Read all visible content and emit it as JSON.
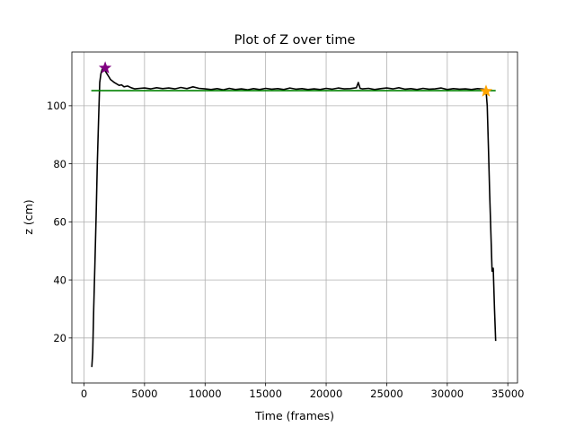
{
  "chart_data": {
    "type": "line",
    "title": "Plot of Z over time",
    "xlabel": "Time (frames)",
    "ylabel": "z (cm)",
    "xlim": [
      -1000,
      35800
    ],
    "ylim": [
      4.5,
      118.5
    ],
    "xticks": [
      0,
      5000,
      10000,
      15000,
      20000,
      25000,
      30000,
      35000
    ],
    "xtick_labels": [
      "0",
      "5000",
      "10000",
      "15000",
      "20000",
      "25000",
      "30000",
      "35000"
    ],
    "yticks": [
      20,
      40,
      60,
      80,
      100
    ],
    "ytick_labels": [
      "20",
      "40",
      "60",
      "80",
      "100"
    ],
    "grid": true,
    "legend": "none",
    "series": [
      {
        "color": "#000000",
        "x": [
          650,
          720,
          800,
          900,
          1000,
          1100,
          1200,
          1300,
          1400,
          1500,
          1600,
          1750,
          1900,
          2050,
          2200,
          2350,
          2500,
          2700,
          2900,
          3100,
          3300,
          3600,
          3900,
          4200,
          4600,
          5000,
          5500,
          6000,
          6500,
          7000,
          7500,
          8000,
          8500,
          9000,
          9500,
          10000,
          10500,
          11000,
          11500,
          12000,
          12500,
          13000,
          13500,
          14000,
          14500,
          15000,
          15500,
          16000,
          16500,
          17000,
          17500,
          18000,
          18500,
          19000,
          19500,
          20000,
          20500,
          21000,
          21500,
          22000,
          22500,
          22650,
          22800,
          23000,
          23500,
          24000,
          24500,
          25000,
          25500,
          26000,
          26500,
          27000,
          27500,
          28000,
          28500,
          29000,
          29500,
          30000,
          30500,
          31000,
          31500,
          32000,
          32500,
          33000,
          33100,
          33200,
          33300,
          33400,
          33500,
          33600,
          33700,
          33800,
          33900,
          34000
        ],
        "y": [
          10,
          15,
          30,
          45,
          62,
          80,
          95,
          108,
          111,
          112.5,
          113,
          112,
          111,
          110,
          109,
          108.5,
          108,
          107.5,
          107,
          107.2,
          106.5,
          106.8,
          106.2,
          105.8,
          106,
          106.1,
          105.8,
          106.2,
          105.9,
          106.1,
          105.8,
          106.3,
          105.9,
          106.5,
          106,
          105.8,
          105.6,
          105.9,
          105.5,
          106,
          105.6,
          105.8,
          105.5,
          105.9,
          105.6,
          106,
          105.7,
          105.9,
          105.6,
          106.1,
          105.7,
          105.9,
          105.6,
          105.8,
          105.6,
          106,
          105.7,
          106.1,
          105.8,
          105.9,
          106.2,
          108,
          106,
          105.8,
          106,
          105.6,
          105.9,
          106.1,
          105.8,
          106.2,
          105.7,
          105.9,
          105.6,
          106,
          105.7,
          105.8,
          106.1,
          105.6,
          105.9,
          105.7,
          105.8,
          105.6,
          105.9,
          105.7,
          105.5,
          105.2,
          100,
          85,
          70,
          57,
          43,
          44,
          30,
          19
        ]
      },
      {
        "color": "#008000",
        "x": [
          600,
          34000
        ],
        "y": [
          105.2,
          105.2
        ]
      }
    ],
    "markers": [
      {
        "shape": "star",
        "x": 1750,
        "y": 113,
        "color": "#800080"
      },
      {
        "shape": "star",
        "x": 33200,
        "y": 105,
        "color": "#ffa500"
      }
    ]
  }
}
